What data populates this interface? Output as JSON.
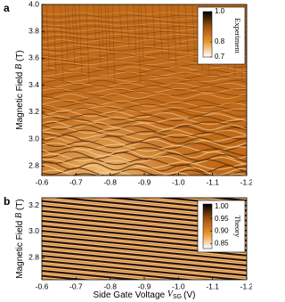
{
  "chart_data": [
    {
      "type": "heatmap",
      "panel_label": "a",
      "y_label": {
        "text": "Magnetic Field",
        "symbol": "B",
        "unit": "(T)"
      },
      "xlim": [
        -0.6,
        -1.2
      ],
      "xticks": [
        -0.6,
        -0.7,
        -0.8,
        -0.9,
        {
          "value": -1.0,
          "label": "-1.0"
        },
        -1.1,
        -1.2
      ],
      "ylim": [
        2.73,
        4.0
      ],
      "yticks": [
        2.8,
        {
          "value": 3.0,
          "label": "3.0"
        },
        3.2,
        3.4,
        3.6,
        3.8,
        {
          "value": 4.0,
          "label": "4.0"
        }
      ],
      "colorbar": {
        "label": "Experiment",
        "clim": [
          0.7,
          1.0
        ],
        "ticks": [
          {
            "value": 1.0,
            "label": "1.0"
          },
          0.8,
          0.7
        ],
        "colormap": [
          "#ffffff",
          "#e8962e",
          "#a0520f",
          "#000000"
        ]
      }
    },
    {
      "type": "heatmap",
      "panel_label": "b",
      "y_label": {
        "text": "Magnetic Field",
        "symbol": "B",
        "unit": "(T)"
      },
      "x_label": {
        "text": "Side Gate Voltage",
        "symbol": "V",
        "subscript": "SG",
        "unit": "(V)"
      },
      "xlim": [
        -0.6,
        -1.2
      ],
      "xticks": [
        -0.6,
        -0.7,
        -0.8,
        -0.9,
        {
          "value": -1.0,
          "label": "-1.0"
        },
        -1.1,
        -1.2
      ],
      "ylim": [
        2.63,
        3.26
      ],
      "yticks": [
        2.8,
        {
          "value": 3.0,
          "label": "3.0"
        },
        3.2
      ],
      "colorbar": {
        "label": "Theory",
        "clim": [
          0.83,
          1.01
        ],
        "ticks": [
          {
            "value": 1.0,
            "label": "1.00"
          },
          0.95,
          {
            "value": 0.9,
            "label": "0.90"
          },
          0.85
        ],
        "colormap": [
          "#ffffff",
          "#e8962e",
          "#a0520f",
          "#000000"
        ]
      }
    }
  ]
}
